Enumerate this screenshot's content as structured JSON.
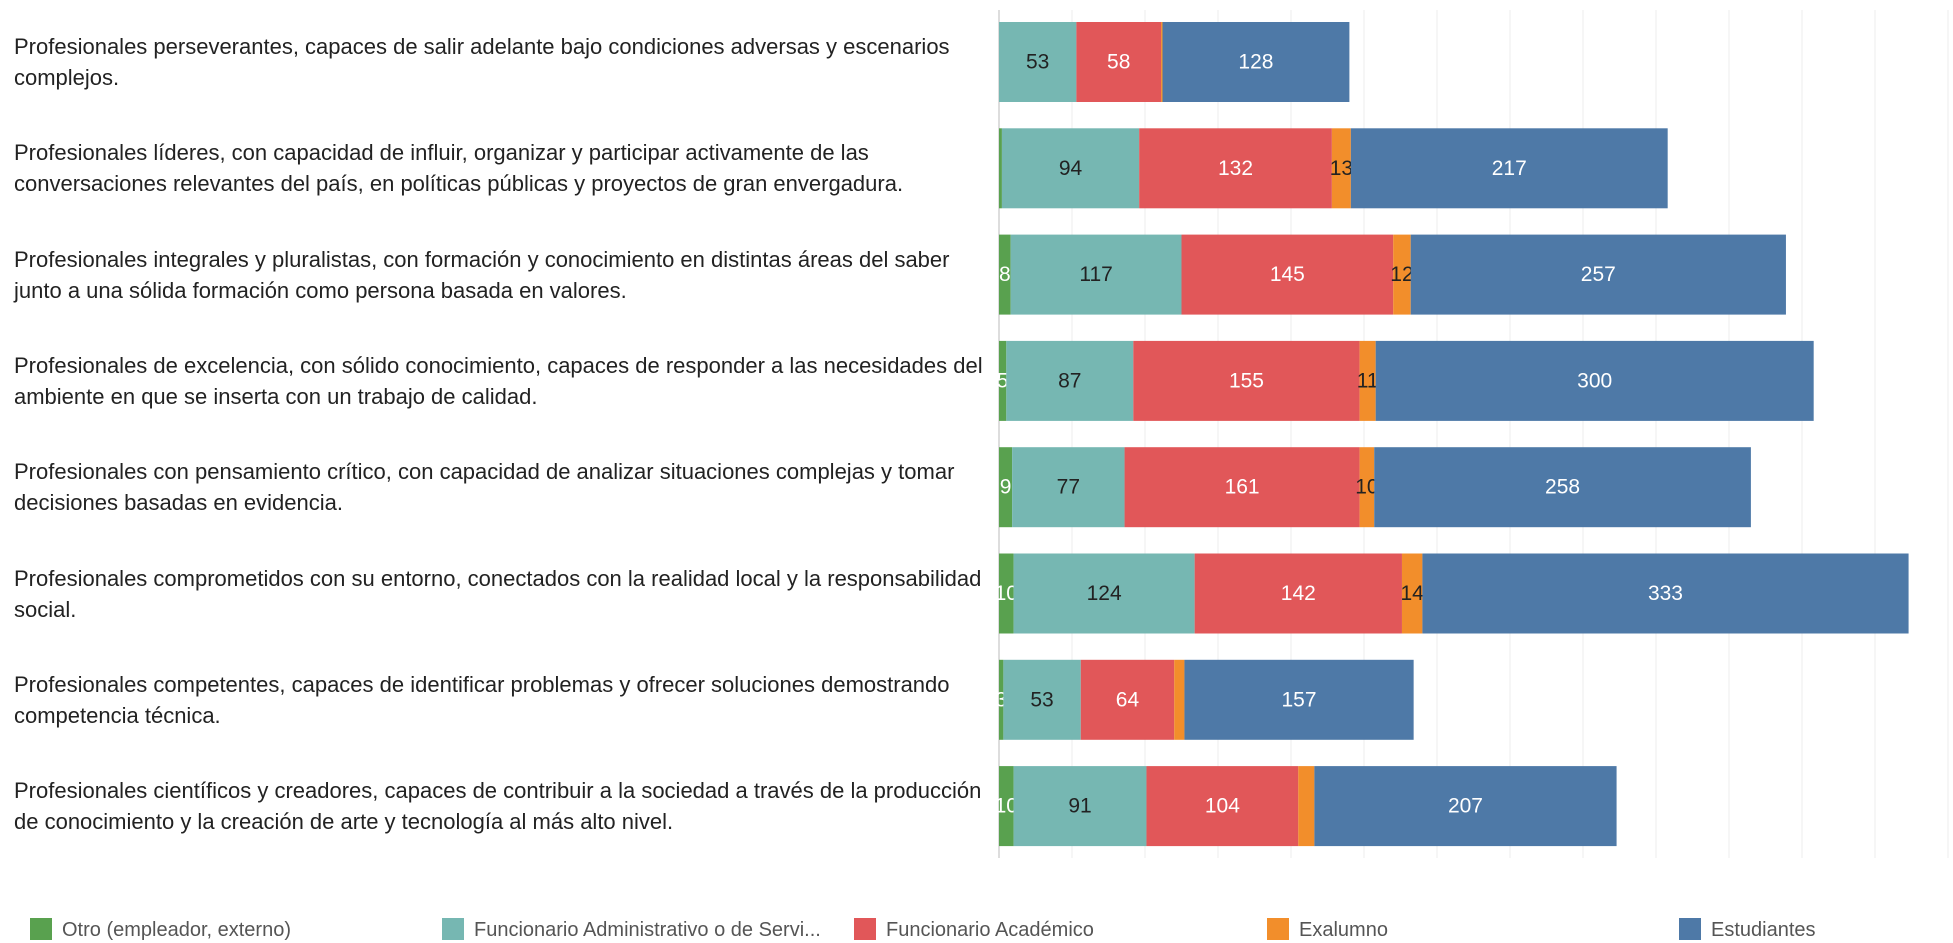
{
  "chart_data": {
    "type": "bar",
    "orientation": "horizontal",
    "stacked": true,
    "categories": [
      "Profesionales perseverantes, capaces de salir adelante bajo condiciones adversas y escenarios complejos.",
      "Profesionales líderes, con capacidad de influir, organizar y participar activamente de las conversaciones relevantes del país, en políticas públicas y proyectos de gran envergadura.",
      "Profesionales integrales y pluralistas, con formación y conocimiento en distintas áreas del saber junto a una sólida formación como persona basada en valores.",
      "Profesionales de excelencia, con sólido conocimiento, capaces de responder a las necesidades del ambiente en que se inserta con un trabajo de calidad.",
      "Profesionales con pensamiento crítico, con capacidad de analizar situaciones complejas y tomar decisiones basadas en evidencia.",
      "Profesionales comprometidos con su entorno, conectados con la realidad local y la responsabilidad social.",
      "Profesionales competentes, capaces de identificar problemas y ofrecer soluciones demostrando competencia técnica.",
      "Profesionales científicos y creadores, capaces de contribuir a la sociedad a través de la producción de conocimiento y la creación de arte y tecnología al más alto nivel."
    ],
    "series": [
      {
        "name": "Otro (empleador, externo)",
        "color": "#59a14f",
        "values": [
          null,
          2,
          8,
          5,
          9,
          10,
          3,
          10
        ],
        "value_labels": [
          null,
          null,
          "8",
          "5",
          "9",
          "10",
          "3",
          "10"
        ]
      },
      {
        "name": "Funcionario Administrativo o de Servi...",
        "color": "#76b7b2",
        "values": [
          53,
          94,
          117,
          87,
          77,
          124,
          53,
          91
        ],
        "value_labels": [
          "53",
          "94",
          "117",
          "87",
          "77",
          "124",
          "53",
          "91"
        ]
      },
      {
        "name": "Funcionario Académico",
        "color": "#e15759",
        "values": [
          58,
          132,
          145,
          155,
          161,
          142,
          64,
          104
        ],
        "value_labels": [
          "58",
          "132",
          "145",
          "155",
          "161",
          "142",
          "64",
          "104"
        ]
      },
      {
        "name": "Exalumno",
        "color": "#f28e2b",
        "values": [
          1,
          13,
          12,
          11,
          10,
          14,
          7,
          11
        ],
        "value_labels": [
          null,
          "13",
          "12",
          "11",
          "10",
          "14",
          null,
          null
        ]
      },
      {
        "name": "Estudiantes",
        "color": "#4e79a7",
        "values": [
          128,
          217,
          257,
          300,
          258,
          333,
          157,
          207
        ],
        "value_labels": [
          "128",
          "217",
          "257",
          "300",
          "258",
          "333",
          "157",
          "207"
        ]
      }
    ],
    "xlim": [
      0,
      650
    ],
    "xticks": [
      0,
      50,
      100,
      150,
      200,
      250,
      300,
      350,
      400,
      450,
      500,
      550,
      600,
      650
    ],
    "grid": true,
    "legend": "bottom"
  }
}
